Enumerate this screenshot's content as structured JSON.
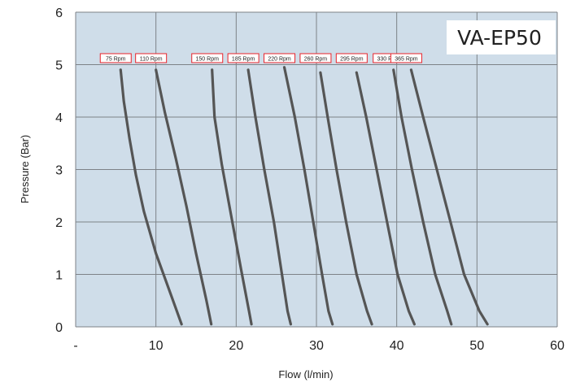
{
  "chart_data": {
    "type": "line",
    "title": "VA-EP50",
    "xlabel": "Flow (l/min)",
    "ylabel": "Pressure (Bar)",
    "xlim": [
      0,
      60
    ],
    "ylim": [
      0,
      6
    ],
    "x_ticks": [
      "-",
      "10",
      "20",
      "30",
      "40",
      "50",
      "60"
    ],
    "y_ticks": [
      "0",
      "1",
      "2",
      "3",
      "4",
      "5",
      "6"
    ],
    "grid": true,
    "colors": {
      "plot_background": "#cfdde9",
      "grid": "#7d8287",
      "curve": "#555555",
      "label_border": "#e8232a"
    },
    "series": [
      {
        "name": "75 Rpm",
        "x": [
          5.6,
          6.0,
          6.7,
          7.5,
          8.5,
          10.0,
          11.9,
          13.2
        ],
        "y": [
          4.9,
          4.3,
          3.6,
          2.9,
          2.2,
          1.4,
          0.6,
          0.05
        ]
      },
      {
        "name": "110 Rpm",
        "x": [
          10.0,
          11.1,
          12.5,
          13.8,
          15.0,
          16.3,
          16.9
        ],
        "y": [
          4.9,
          4.1,
          3.2,
          2.3,
          1.4,
          0.5,
          0.05
        ]
      },
      {
        "name": "150 Rpm",
        "x": [
          17.0,
          17.3,
          18.2,
          19.4,
          20.6,
          21.6,
          21.9
        ],
        "y": [
          4.9,
          4.0,
          3.1,
          2.1,
          1.1,
          0.3,
          0.05
        ]
      },
      {
        "name": "185 Rpm",
        "x": [
          21.5,
          22.4,
          23.5,
          24.7,
          25.7,
          26.4,
          26.8
        ],
        "y": [
          4.9,
          4.0,
          3.0,
          2.0,
          1.0,
          0.3,
          0.05
        ]
      },
      {
        "name": "220 Rpm",
        "x": [
          26.0,
          27.3,
          28.5,
          29.6,
          30.7,
          31.5,
          32.0
        ],
        "y": [
          4.95,
          4.0,
          3.0,
          2.0,
          1.0,
          0.3,
          0.05
        ]
      },
      {
        "name": "260 Rpm",
        "x": [
          30.5,
          31.4,
          32.5,
          33.7,
          35.0,
          36.3,
          36.9
        ],
        "y": [
          4.85,
          4.0,
          3.0,
          2.0,
          1.0,
          0.3,
          0.05
        ]
      },
      {
        "name": "295 Rpm",
        "x": [
          35.0,
          36.2,
          37.5,
          38.8,
          40.1,
          41.5,
          42.2
        ],
        "y": [
          4.85,
          4.0,
          3.0,
          2.0,
          1.0,
          0.3,
          0.05
        ]
      },
      {
        "name": "330 Rpm",
        "x": [
          39.6,
          40.6,
          41.9,
          43.3,
          44.8,
          46.3,
          46.8
        ],
        "y": [
          4.9,
          4.0,
          3.0,
          2.0,
          1.0,
          0.3,
          0.05
        ]
      },
      {
        "name": "365 Rpm",
        "x": [
          41.8,
          43.3,
          45.0,
          46.7,
          48.4,
          50.3,
          51.3
        ],
        "y": [
          4.9,
          4.0,
          3.0,
          2.0,
          1.0,
          0.3,
          0.05
        ]
      }
    ]
  }
}
